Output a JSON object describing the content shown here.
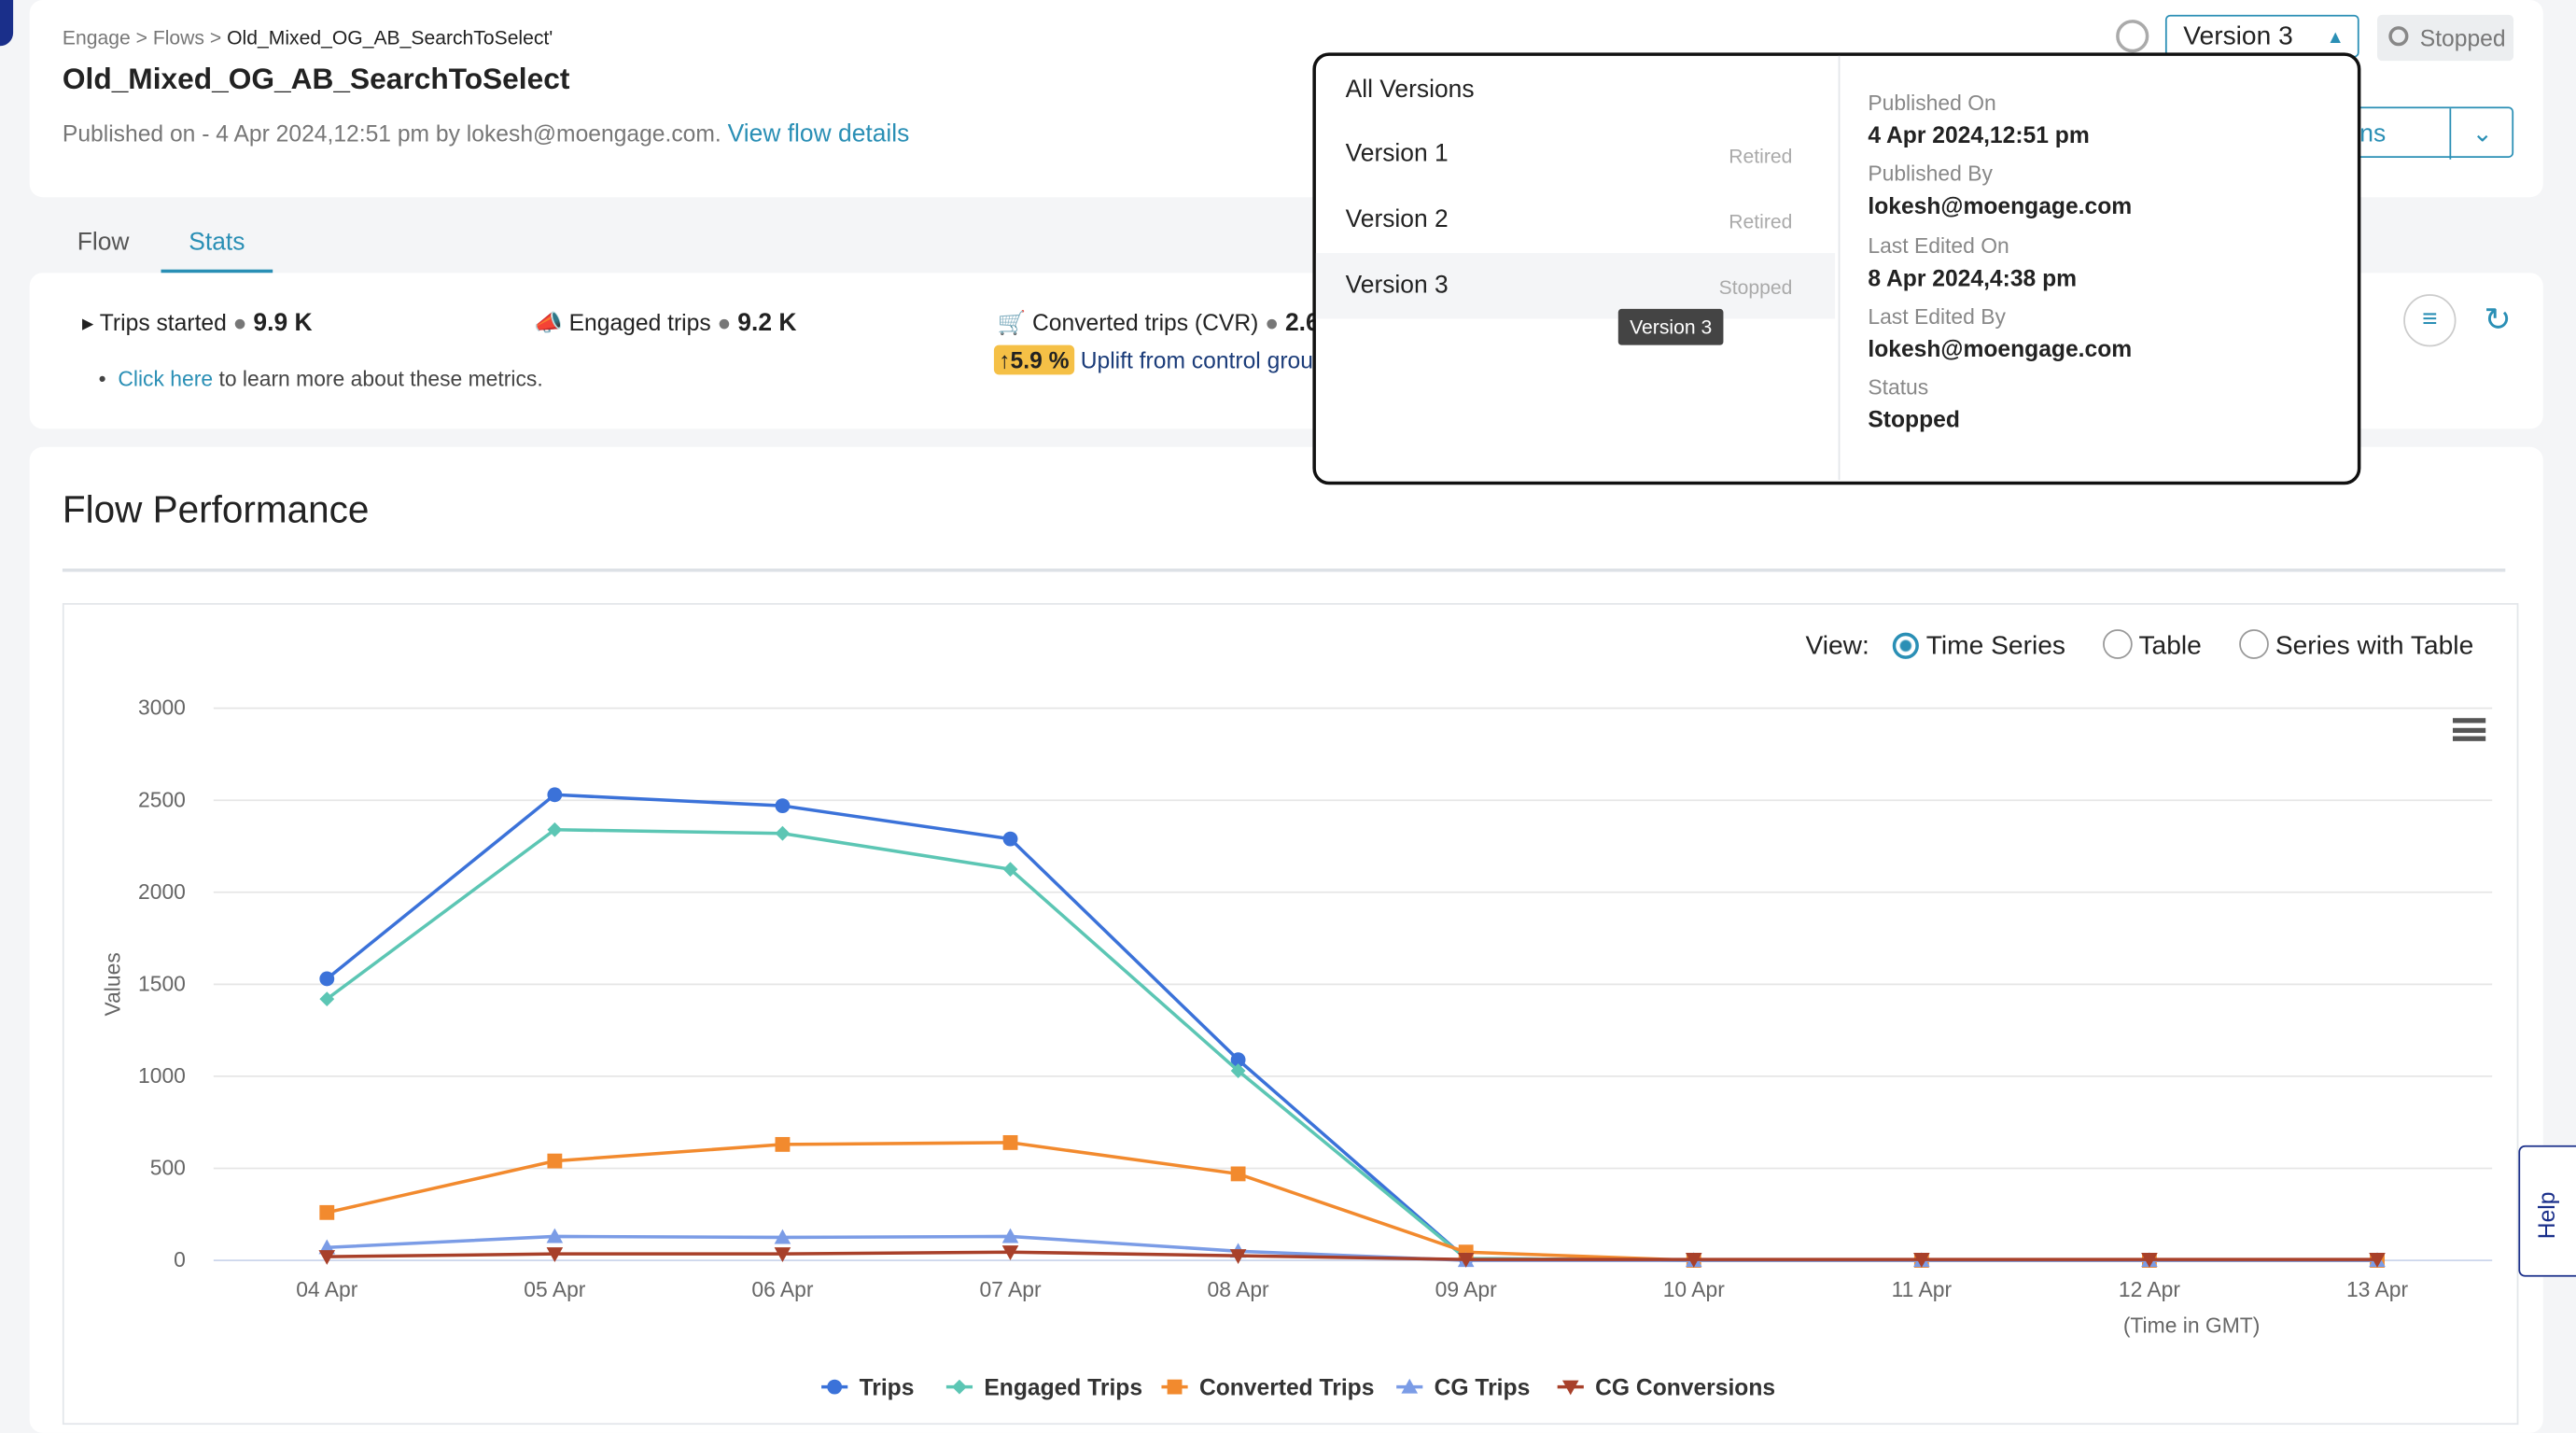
{
  "breadcrumb": {
    "items": [
      "Engage",
      "Flows",
      "Old_Mixed_OG_AB_SearchToSelect'"
    ],
    "separator": ">"
  },
  "header": {
    "title": "Old_Mixed_OG_AB_SearchToSelect",
    "published": "Published on - 4 Apr 2024,12:51 pm by lokesh@moengage.com.",
    "link": "View flow details",
    "version": "Version 3",
    "status": "Stopped",
    "actions": "Actions"
  },
  "tabs": [
    "Flow",
    "Stats"
  ],
  "metrics": {
    "trips_label": "Trips started",
    "trips_value": "9.9 K",
    "engaged_label": "Engaged trips",
    "engaged_value": "9.2 K",
    "converted_label": "Converted trips (CVR)",
    "converted_value": "2.6",
    "uplift_value": "↑5.9 %",
    "uplift_label": "Uplift from control group",
    "info_link": "Click here",
    "info_text": "to learn more about these metrics."
  },
  "dropdown": {
    "all": "All Versions",
    "versions": [
      {
        "name": "Version 1",
        "status": "Retired"
      },
      {
        "name": "Version 2",
        "status": "Retired"
      },
      {
        "name": "Version 3",
        "status": "Stopped"
      }
    ],
    "tooltip": "Version 3",
    "details": [
      {
        "label": "Published On",
        "value": "4 Apr 2024,12:51 pm"
      },
      {
        "label": "Published By",
        "value": "lokesh@moengage.com"
      },
      {
        "label": "Last Edited On",
        "value": "8 Apr 2024,4:38 pm"
      },
      {
        "label": "Last Edited By",
        "value": "lokesh@moengage.com"
      },
      {
        "label": "Status",
        "value": "Stopped"
      }
    ]
  },
  "panel": {
    "title": "Flow Performance",
    "view_label": "View:",
    "view_options": [
      "Time Series",
      "Table",
      "Series with Table"
    ]
  },
  "help": "Help",
  "chart_data": {
    "type": "line",
    "y_label": "Values",
    "x_label": "(Time in GMT)",
    "categories": [
      "04 Apr",
      "05 Apr",
      "06 Apr",
      "07 Apr",
      "08 Apr",
      "09 Apr",
      "10 Apr",
      "11 Apr",
      "12 Apr",
      "13 Apr"
    ],
    "ylim": [
      0,
      3000
    ],
    "yticks": [
      0,
      500,
      1000,
      1500,
      2000,
      2500,
      3000
    ],
    "grid": true,
    "series": [
      {
        "name": "Trips",
        "color": "#3b72d9",
        "marker": "circle",
        "values": [
          1530,
          2530,
          2470,
          2290,
          1090,
          10,
          0,
          0,
          0,
          0
        ]
      },
      {
        "name": "Engaged Trips",
        "color": "#5cc6b4",
        "marker": "diamond",
        "values": [
          1420,
          2340,
          2320,
          2125,
          1030,
          10,
          0,
          0,
          0,
          0
        ]
      },
      {
        "name": "Converted Trips",
        "color": "#f28a2e",
        "marker": "square",
        "values": [
          260,
          540,
          630,
          640,
          470,
          45,
          0,
          0,
          0,
          0
        ]
      },
      {
        "name": "CG Trips",
        "color": "#7b9ce6",
        "marker": "triangle",
        "values": [
          70,
          130,
          125,
          130,
          50,
          0,
          0,
          0,
          0,
          0
        ]
      },
      {
        "name": "CG Conversions",
        "color": "#a8402a",
        "marker": "triangle-down",
        "values": [
          20,
          35,
          35,
          45,
          25,
          5,
          5,
          5,
          5,
          5
        ]
      }
    ]
  }
}
